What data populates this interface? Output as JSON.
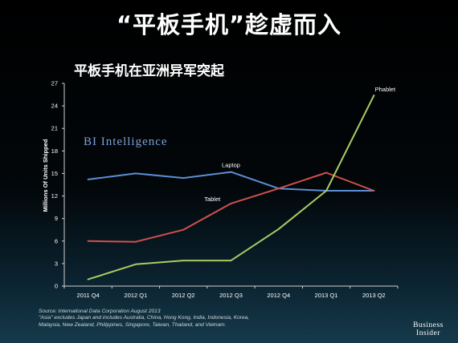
{
  "slide_title": "“平板手机”趁虚而入",
  "chart_data": {
    "type": "line",
    "title": "平板手机在亚洲异军突起",
    "xlabel": "",
    "ylabel": "Millions Of Units Shipped",
    "categories": [
      "2011 Q4",
      "2012 Q1",
      "2012 Q2",
      "2012 Q3",
      "2012 Q4",
      "2013 Q1",
      "2013 Q2"
    ],
    "y_ticks": [
      0,
      3,
      6,
      9,
      12,
      15,
      18,
      21,
      24,
      27
    ],
    "ylim": [
      0,
      27
    ],
    "grid": false,
    "legend": "inline labels",
    "series": [
      {
        "name": "Laptop",
        "color": "#5b8fd6",
        "values": [
          14.2,
          15.0,
          14.4,
          15.2,
          13.0,
          12.7,
          12.7
        ]
      },
      {
        "name": "Tablet",
        "color": "#d2504b",
        "values": [
          6.0,
          5.9,
          7.5,
          11.0,
          13.0,
          15.1,
          12.7
        ]
      },
      {
        "name": "Phablet",
        "color": "#a8cc64",
        "values": [
          0.9,
          2.9,
          3.4,
          3.4,
          7.6,
          12.7,
          25.4
        ]
      }
    ]
  },
  "watermark": "BI Intelligence",
  "source_lines": [
    "Source: International Data Corporation August 2013",
    "\"Asia\" excludes Japan and includes Australia, China, Hong Kong, India, Indonesia, Korea,",
    "Malaysia, New Zealand, Philippines, Singapore, Taiwan, Thailand, and Vietnam."
  ],
  "logo": {
    "line1": "Business",
    "line2": "Insider"
  }
}
